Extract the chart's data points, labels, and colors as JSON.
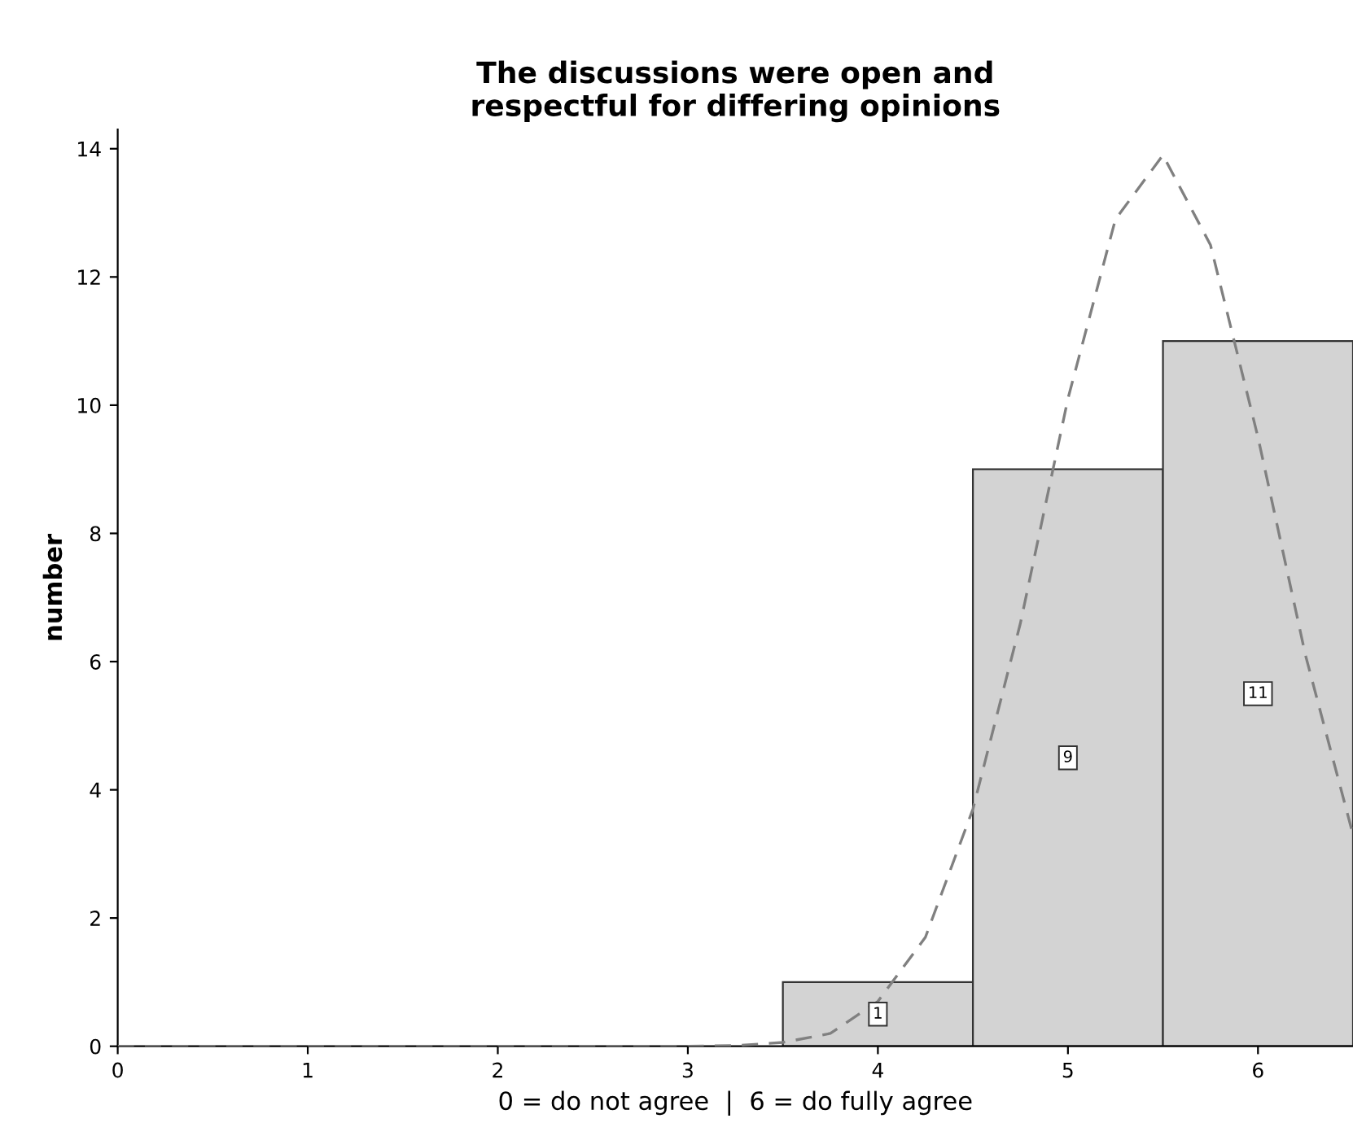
{
  "chart_data": {
    "type": "histogram",
    "title": "The discussions were open and\nrespectful for differing opinions",
    "xlabel": "0 = do not agree  |  6 = do fully agree",
    "ylabel": "number",
    "bins": [
      3.5,
      4.5,
      5.5,
      6.5
    ],
    "values": [
      1,
      9,
      11
    ],
    "color": "#d3d3d3",
    "value_labels": [
      "1",
      "9",
      "11"
    ],
    "series": [
      {
        "type": "line",
        "color": "#808080",
        "line_style": "dashed",
        "marker": "none",
        "x": [
          0,
          1,
          2,
          3,
          3.25,
          3.5,
          3.75,
          4,
          4.25,
          4.5,
          4.75,
          5,
          5.25,
          5.5,
          5.75,
          6,
          6.25,
          6.5
        ],
        "values": [
          0,
          0,
          0,
          0,
          0.01,
          0.06,
          0.2,
          0.7,
          1.7,
          3.7,
          6.6,
          10.1,
          12.9,
          13.9,
          12.5,
          9.5,
          6.1,
          3.3
        ]
      }
    ],
    "xlim": [
      0,
      6.5
    ],
    "ylim": [
      0,
      14.3
    ],
    "xticks": [
      0,
      1,
      2,
      3,
      4,
      5,
      6
    ],
    "yticks": [
      0,
      2,
      4,
      6,
      8,
      10,
      12,
      14
    ],
    "grid": false,
    "legend": false
  }
}
